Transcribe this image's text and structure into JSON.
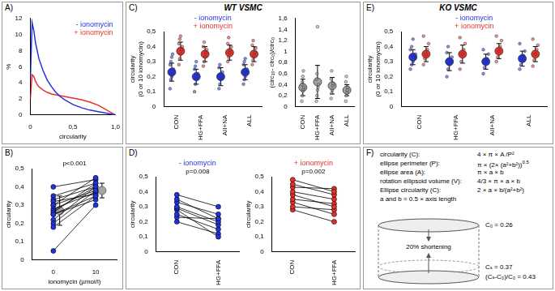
{
  "chart_data": [
    {
      "panel": "A)",
      "type": "line",
      "xlabel": "circularity",
      "ylabel": "%",
      "x": [
        0,
        0.02,
        0.04,
        0.06,
        0.08,
        0.1,
        0.15,
        0.2,
        0.25,
        0.3,
        0.35,
        0.4,
        0.5,
        0.6,
        0.7,
        0.8,
        0.9,
        0.95,
        1
      ],
      "xlim": [
        0,
        1
      ],
      "xticks": [
        0,
        {
          "value": 0.5,
          "label": "0,5"
        },
        {
          "value": 1,
          "label": "1,0"
        }
      ],
      "ylim": [
        0,
        12
      ],
      "yticks": [
        0,
        2,
        4,
        6,
        8,
        10,
        12
      ],
      "grid": false,
      "legend": "upper right",
      "series": [
        {
          "name": "- ionomycin",
          "color": "#2233dd",
          "values": [
            4.5,
            11.5,
            10.5,
            9,
            8,
            7,
            5.5,
            4.3,
            3.5,
            2.8,
            2.3,
            1.9,
            1.3,
            0.9,
            0.6,
            0.4,
            0.2,
            0.1,
            0
          ]
        },
        {
          "name": "+ ionomycin",
          "color": "#e8302a",
          "values": [
            2,
            5,
            4.8,
            4.2,
            3.8,
            3.5,
            3.1,
            2.8,
            2.6,
            2.5,
            2.4,
            2.3,
            2.1,
            1.9,
            1.6,
            1.2,
            0.6,
            0.3,
            0
          ]
        }
      ]
    },
    {
      "panel": "B)",
      "type": "paired",
      "categories": [
        "0",
        "10"
      ],
      "xlabel": "ionomycin (µmol/l)",
      "ylabel": "circularity",
      "ylim": [
        0,
        0.5
      ],
      "yticks": [
        0,
        {
          "value": 0.1,
          "label": "0,1"
        },
        {
          "value": 0.2,
          "label": "0,2"
        },
        {
          "value": 0.3,
          "label": "0,3"
        },
        {
          "value": 0.4,
          "label": "0,4"
        },
        {
          "value": 0.5,
          "label": "0,5"
        }
      ],
      "grid": false,
      "annotation": "p<0.001",
      "series": [
        {
          "color": "#2233dd",
          "values": [
            [
              0.05,
              0.3
            ],
            [
              0.18,
              0.35
            ],
            [
              0.2,
              0.38
            ],
            [
              0.22,
              0.4
            ],
            [
              0.25,
              0.35
            ],
            [
              0.26,
              0.42
            ],
            [
              0.27,
              0.4
            ],
            [
              0.28,
              0.37
            ],
            [
              0.3,
              0.45
            ],
            [
              0.3,
              0.38
            ],
            [
              0.32,
              0.36
            ],
            [
              0.33,
              0.4
            ],
            [
              0.35,
              0.42
            ],
            [
              0.4,
              0.44
            ],
            [
              0.25,
              0.33
            ]
          ],
          "mean": [
            0.27,
            0.38
          ],
          "sd": [
            0.08,
            0.04
          ]
        }
      ]
    },
    {
      "panel": "C)",
      "title": "WT VSMC",
      "type": "dotplot",
      "categories": [
        "CON",
        "HG+FFA",
        "AII+NA",
        "ALL"
      ],
      "ylabel": [
        "circularity",
        "(0 or 10 ionomycin)"
      ],
      "ylim": [
        0,
        0.5
      ],
      "yticks": [
        0,
        {
          "value": 0.1,
          "label": "0,1"
        },
        {
          "value": 0.2,
          "label": "0,2"
        },
        {
          "value": 0.3,
          "label": "0,3"
        },
        {
          "value": 0.4,
          "label": "0,4"
        },
        {
          "value": 0.5,
          "label": "0,5"
        }
      ],
      "grid": false,
      "legend": "top",
      "series": [
        {
          "name": "- ionomycin",
          "color": "#2233dd",
          "values": [
            0.23,
            0.2,
            0.2,
            0.23
          ],
          "sd": [
            0.06,
            0.05,
            0.06,
            0.05
          ],
          "points": [
            [
              0.12,
              0.18,
              0.2,
              0.22,
              0.25,
              0.28,
              0.3,
              0.33,
              0.35
            ],
            [
              0.1,
              0.15,
              0.18,
              0.2,
              0.22,
              0.25,
              0.27,
              0.3
            ],
            [
              0.12,
              0.15,
              0.18,
              0.2,
              0.23,
              0.26,
              0.28
            ],
            [
              0.15,
              0.18,
              0.2,
              0.23,
              0.25,
              0.28,
              0.3,
              0.32
            ]
          ]
        },
        {
          "name": "+ ionomycin",
          "color": "#e8302a",
          "values": [
            0.37,
            0.35,
            0.36,
            0.35
          ],
          "sd": [
            0.06,
            0.05,
            0.05,
            0.05
          ],
          "points": [
            [
              0.28,
              0.32,
              0.35,
              0.38,
              0.4,
              0.42,
              0.45,
              0.47
            ],
            [
              0.27,
              0.3,
              0.33,
              0.36,
              0.38,
              0.4,
              0.43
            ],
            [
              0.3,
              0.33,
              0.36,
              0.38,
              0.4,
              0.42,
              0.46
            ],
            [
              0.28,
              0.31,
              0.34,
              0.36,
              0.39,
              0.41,
              0.44
            ]
          ]
        }
      ]
    },
    {
      "type": "dotplot",
      "categories": [
        "CON",
        "HG+FFA",
        "AII+NA",
        "ALL"
      ],
      "ylabel": "(circ₁₀- circ₀)/circ₀",
      "ylim": [
        0,
        1.6
      ],
      "yticks": [
        0,
        {
          "value": 0.2,
          "label": "0,2"
        },
        {
          "value": 0.4,
          "label": "0,4"
        },
        {
          "value": 0.6,
          "label": "0,6"
        },
        {
          "value": 0.8,
          "label": "0,8"
        },
        1,
        {
          "value": 1.2,
          "label": "1,2"
        },
        {
          "value": 1.4,
          "label": "1,4"
        },
        {
          "value": 1.6,
          "label": "1,6"
        }
      ],
      "grid": false,
      "series": [
        {
          "color": "#a0a0a0",
          "values": [
            0.35,
            0.45,
            0.38,
            0.3
          ],
          "sd": [
            0.15,
            0.3,
            0.15,
            0.1
          ],
          "points": [
            [
              0.1,
              0.2,
              0.28,
              0.32,
              0.35,
              0.4,
              0.45,
              0.55,
              0.65
            ],
            [
              0.1,
              0.2,
              0.3,
              0.35,
              0.4,
              0.5,
              0.6,
              1.45
            ],
            [
              0.15,
              0.25,
              0.3,
              0.38,
              0.42,
              0.5,
              0.65
            ],
            [
              0.1,
              0.2,
              0.25,
              0.3,
              0.35,
              0.45,
              0.55
            ]
          ]
        }
      ]
    },
    {
      "panel": "D)",
      "type": "paired",
      "categories": [
        "CON",
        "HG+FFA"
      ],
      "ylabel": "circularity",
      "ylim": [
        0,
        0.5
      ],
      "yticks": [
        0,
        {
          "value": 0.1,
          "label": "0,1"
        },
        {
          "value": 0.2,
          "label": "0,2"
        },
        {
          "value": 0.3,
          "label": "0,3"
        },
        {
          "value": 0.4,
          "label": "0,4"
        },
        {
          "value": 0.5,
          "label": "0,5"
        }
      ],
      "grid": false,
      "legend": "top",
      "annotation": "p=0.008",
      "series": [
        {
          "name": "- ionomycin",
          "color": "#2233dd",
          "values": [
            [
              0.38,
              0.3
            ],
            [
              0.35,
              0.22
            ],
            [
              0.33,
              0.25
            ],
            [
              0.3,
              0.2
            ],
            [
              0.29,
              0.18
            ],
            [
              0.28,
              0.1
            ],
            [
              0.25,
              0.15
            ],
            [
              0.23,
              0.22
            ],
            [
              0.2,
              0.12
            ]
          ]
        }
      ]
    },
    {
      "type": "paired",
      "categories": [
        "CON",
        "HG+FFA"
      ],
      "ylabel": "circularity",
      "ylim": [
        0,
        0.5
      ],
      "yticks": [
        0,
        {
          "value": 0.1,
          "label": "0,1"
        },
        {
          "value": 0.2,
          "label": "0,2"
        },
        {
          "value": 0.3,
          "label": "0,3"
        },
        {
          "value": 0.4,
          "label": "0,4"
        },
        {
          "value": 0.5,
          "label": "0,5"
        }
      ],
      "grid": false,
      "legend": "top",
      "annotation": "p=0.002",
      "series": [
        {
          "name": "+ ionomycin",
          "color": "#e8302a",
          "values": [
            [
              0.48,
              0.4
            ],
            [
              0.45,
              0.38
            ],
            [
              0.43,
              0.42
            ],
            [
              0.4,
              0.35
            ],
            [
              0.38,
              0.3
            ],
            [
              0.35,
              0.32
            ],
            [
              0.33,
              0.25
            ],
            [
              0.3,
              0.28
            ],
            [
              0.28,
              0.2
            ]
          ]
        }
      ]
    },
    {
      "panel": "E)",
      "title": "KO VSMC",
      "type": "dotplot",
      "categories": [
        "CON",
        "HG+FFA",
        "AII+NA",
        "ALL"
      ],
      "ylabel": [
        "circularity",
        "(0 or 10 ionomycin)"
      ],
      "ylim": [
        0,
        0.5
      ],
      "yticks": [
        0,
        {
          "value": 0.1,
          "label": "0,1"
        },
        {
          "value": 0.2,
          "label": "0,2"
        },
        {
          "value": 0.3,
          "label": "0,3"
        },
        {
          "value": 0.4,
          "label": "0,4"
        },
        {
          "value": 0.5,
          "label": "0,5"
        }
      ],
      "grid": false,
      "legend": "top",
      "series": [
        {
          "name": "- ionomycin",
          "color": "#2233dd",
          "values": [
            0.33,
            0.3,
            0.3,
            0.32
          ],
          "sd": [
            0.05,
            0.06,
            0.05,
            0.05
          ],
          "points": [
            [
              0.25,
              0.28,
              0.3,
              0.33,
              0.35,
              0.38,
              0.4,
              0.45
            ],
            [
              0.2,
              0.25,
              0.28,
              0.3,
              0.33,
              0.36,
              0.4
            ],
            [
              0.22,
              0.26,
              0.3,
              0.32,
              0.35,
              0.38
            ],
            [
              0.25,
              0.28,
              0.31,
              0.34,
              0.37,
              0.42
            ]
          ]
        },
        {
          "name": "+ ionomycin",
          "color": "#e8302a",
          "values": [
            0.35,
            0.35,
            0.37,
            0.35
          ],
          "sd": [
            0.05,
            0.06,
            0.05,
            0.05
          ],
          "points": [
            [
              0.28,
              0.32,
              0.35,
              0.38,
              0.42,
              0.47
            ],
            [
              0.25,
              0.3,
              0.35,
              0.38,
              0.42,
              0.46
            ],
            [
              0.3,
              0.33,
              0.37,
              0.4,
              0.44,
              0.47
            ],
            [
              0.27,
              0.31,
              0.35,
              0.38,
              0.41,
              0.45
            ]
          ]
        }
      ]
    }
  ],
  "diagram": {
    "panel": "F)",
    "formulas": [
      {
        "label": "circularity (C):",
        "formula": "4 × π × A /P²"
      },
      {
        "label": "ellipse perimeter (P):",
        "formula": "π × (2× (a²+b²))",
        "exponent": "0.5"
      },
      {
        "label": "ellipse area (A):",
        "formula": "π × a × b"
      },
      {
        "label": "rotation ellipsoid volume (V):",
        "formula": "4/3 × π × a × b"
      },
      {
        "label": "Ellipse circularity (C):",
        "formula": "2 × a × b/(a²+b²)"
      }
    ],
    "note": "a and b = 0.5 × axis length",
    "shortening": "20% shortening",
    "c0": "C₀ = 0.26",
    "cs": "Cₛ = 0.37",
    "ratio": "(Cₛ-C₀)/C₀ = 0.43"
  }
}
